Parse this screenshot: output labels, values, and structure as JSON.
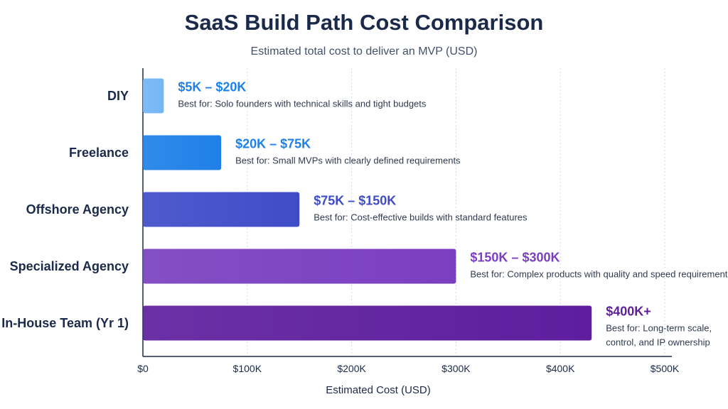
{
  "title": "SaaS Build Path Cost Comparison",
  "subtitle": "Estimated total cost to deliver an MVP (USD)",
  "chart_data": {
    "type": "bar",
    "orientation": "horizontal",
    "title": "SaaS Build Path Cost Comparison",
    "subtitle": "Estimated total cost to deliver an MVP (USD)",
    "xlabel": "Estimated Cost (USD)",
    "ylabel": "",
    "xlim": [
      0,
      500000
    ],
    "x_ticks": [
      0,
      100000,
      200000,
      300000,
      400000,
      500000
    ],
    "x_tick_labels": [
      "$0",
      "$100K",
      "$200K",
      "$300K",
      "$400K",
      "$500K"
    ],
    "grid": "vertical dotted",
    "categories": [
      "DIY",
      "Freelance",
      "Offshore Agency",
      "Specialized Agency",
      "In-House Team (Yr 1)"
    ],
    "values": [
      20000,
      75000,
      150000,
      300000,
      430000
    ],
    "range_labels": [
      "$5K – $20K",
      "$20K – $75K",
      "$75K – $150K",
      "$150K – $300K",
      "$400K+"
    ],
    "notes": [
      [
        "Best for: Solo founders with technical skills and tight budgets"
      ],
      [
        "Best for: Small MVPs with clearly defined requirements"
      ],
      [
        "Best for: Cost-effective builds with standard features"
      ],
      [
        "Best for: Complex products with quality and speed requirements"
      ],
      [
        "Best for: Long-term scale,",
        "control, and IP ownership"
      ]
    ],
    "colors": [
      "#74b6f5",
      "#1f80e8",
      "#3f4cc8",
      "#7a3fc0",
      "#5e1e9e"
    ],
    "label_colors": [
      "#1f80e8",
      "#1f80e8",
      "#3f4cc8",
      "#7a3fc0",
      "#5e1e9e"
    ]
  }
}
